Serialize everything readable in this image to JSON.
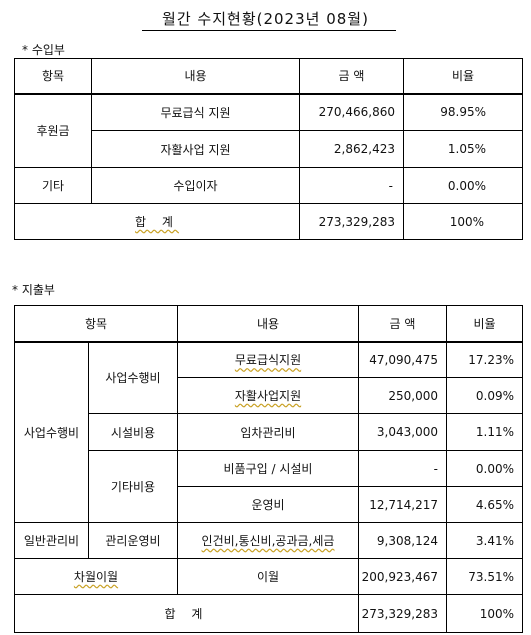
{
  "title": "월간 수지현황(2023년 08월)",
  "income": {
    "label": "* 수입부",
    "headers": {
      "category": "항목",
      "content": "내용",
      "amount": "금 액",
      "ratio": "비율"
    },
    "rows": [
      {
        "category": "후원금",
        "content": "무료급식 지원",
        "amount": "270,466,860",
        "ratio": "98.95%"
      },
      {
        "category": "",
        "content": "자활사업 지원",
        "amount": "2,862,423",
        "ratio": "1.05%"
      },
      {
        "category": "기타",
        "content": "수입이자",
        "amount": "-",
        "ratio": "0.00%"
      }
    ],
    "total": {
      "label": "합 계",
      "amount": "273,329,283",
      "ratio": "100%"
    }
  },
  "expense": {
    "label": "* 지출부",
    "headers": {
      "category": "항목",
      "content": "내용",
      "amount": "금 액",
      "ratio": "비율"
    },
    "groups": {
      "business": "사업수행비",
      "general": "일반관리비",
      "carryover": "차월이월"
    },
    "subgroups": {
      "business_exec": "사업수행비",
      "facility": "시설비용",
      "other": "기타비용",
      "mgmt": "관리운영비"
    },
    "rows": [
      {
        "content": "무료급식지원",
        "amount": "47,090,475",
        "ratio": "17.23%"
      },
      {
        "content": "자활사업지원",
        "amount": "250,000",
        "ratio": "0.09%"
      },
      {
        "content": "임차관리비",
        "amount": "3,043,000",
        "ratio": "1.11%"
      },
      {
        "content": "비품구입 / 시설비",
        "amount": "-",
        "ratio": "0.00%"
      },
      {
        "content": "운영비",
        "amount": "12,714,217",
        "ratio": "4.65%"
      },
      {
        "content": "인건비,통신비,공과금,세금",
        "amount": "9,308,124",
        "ratio": "3.41%"
      },
      {
        "content": "이월",
        "amount": "200,923,467",
        "ratio": "73.51%"
      }
    ],
    "total": {
      "label": "합 계",
      "amount": "273,329,283",
      "ratio": "100%"
    }
  }
}
